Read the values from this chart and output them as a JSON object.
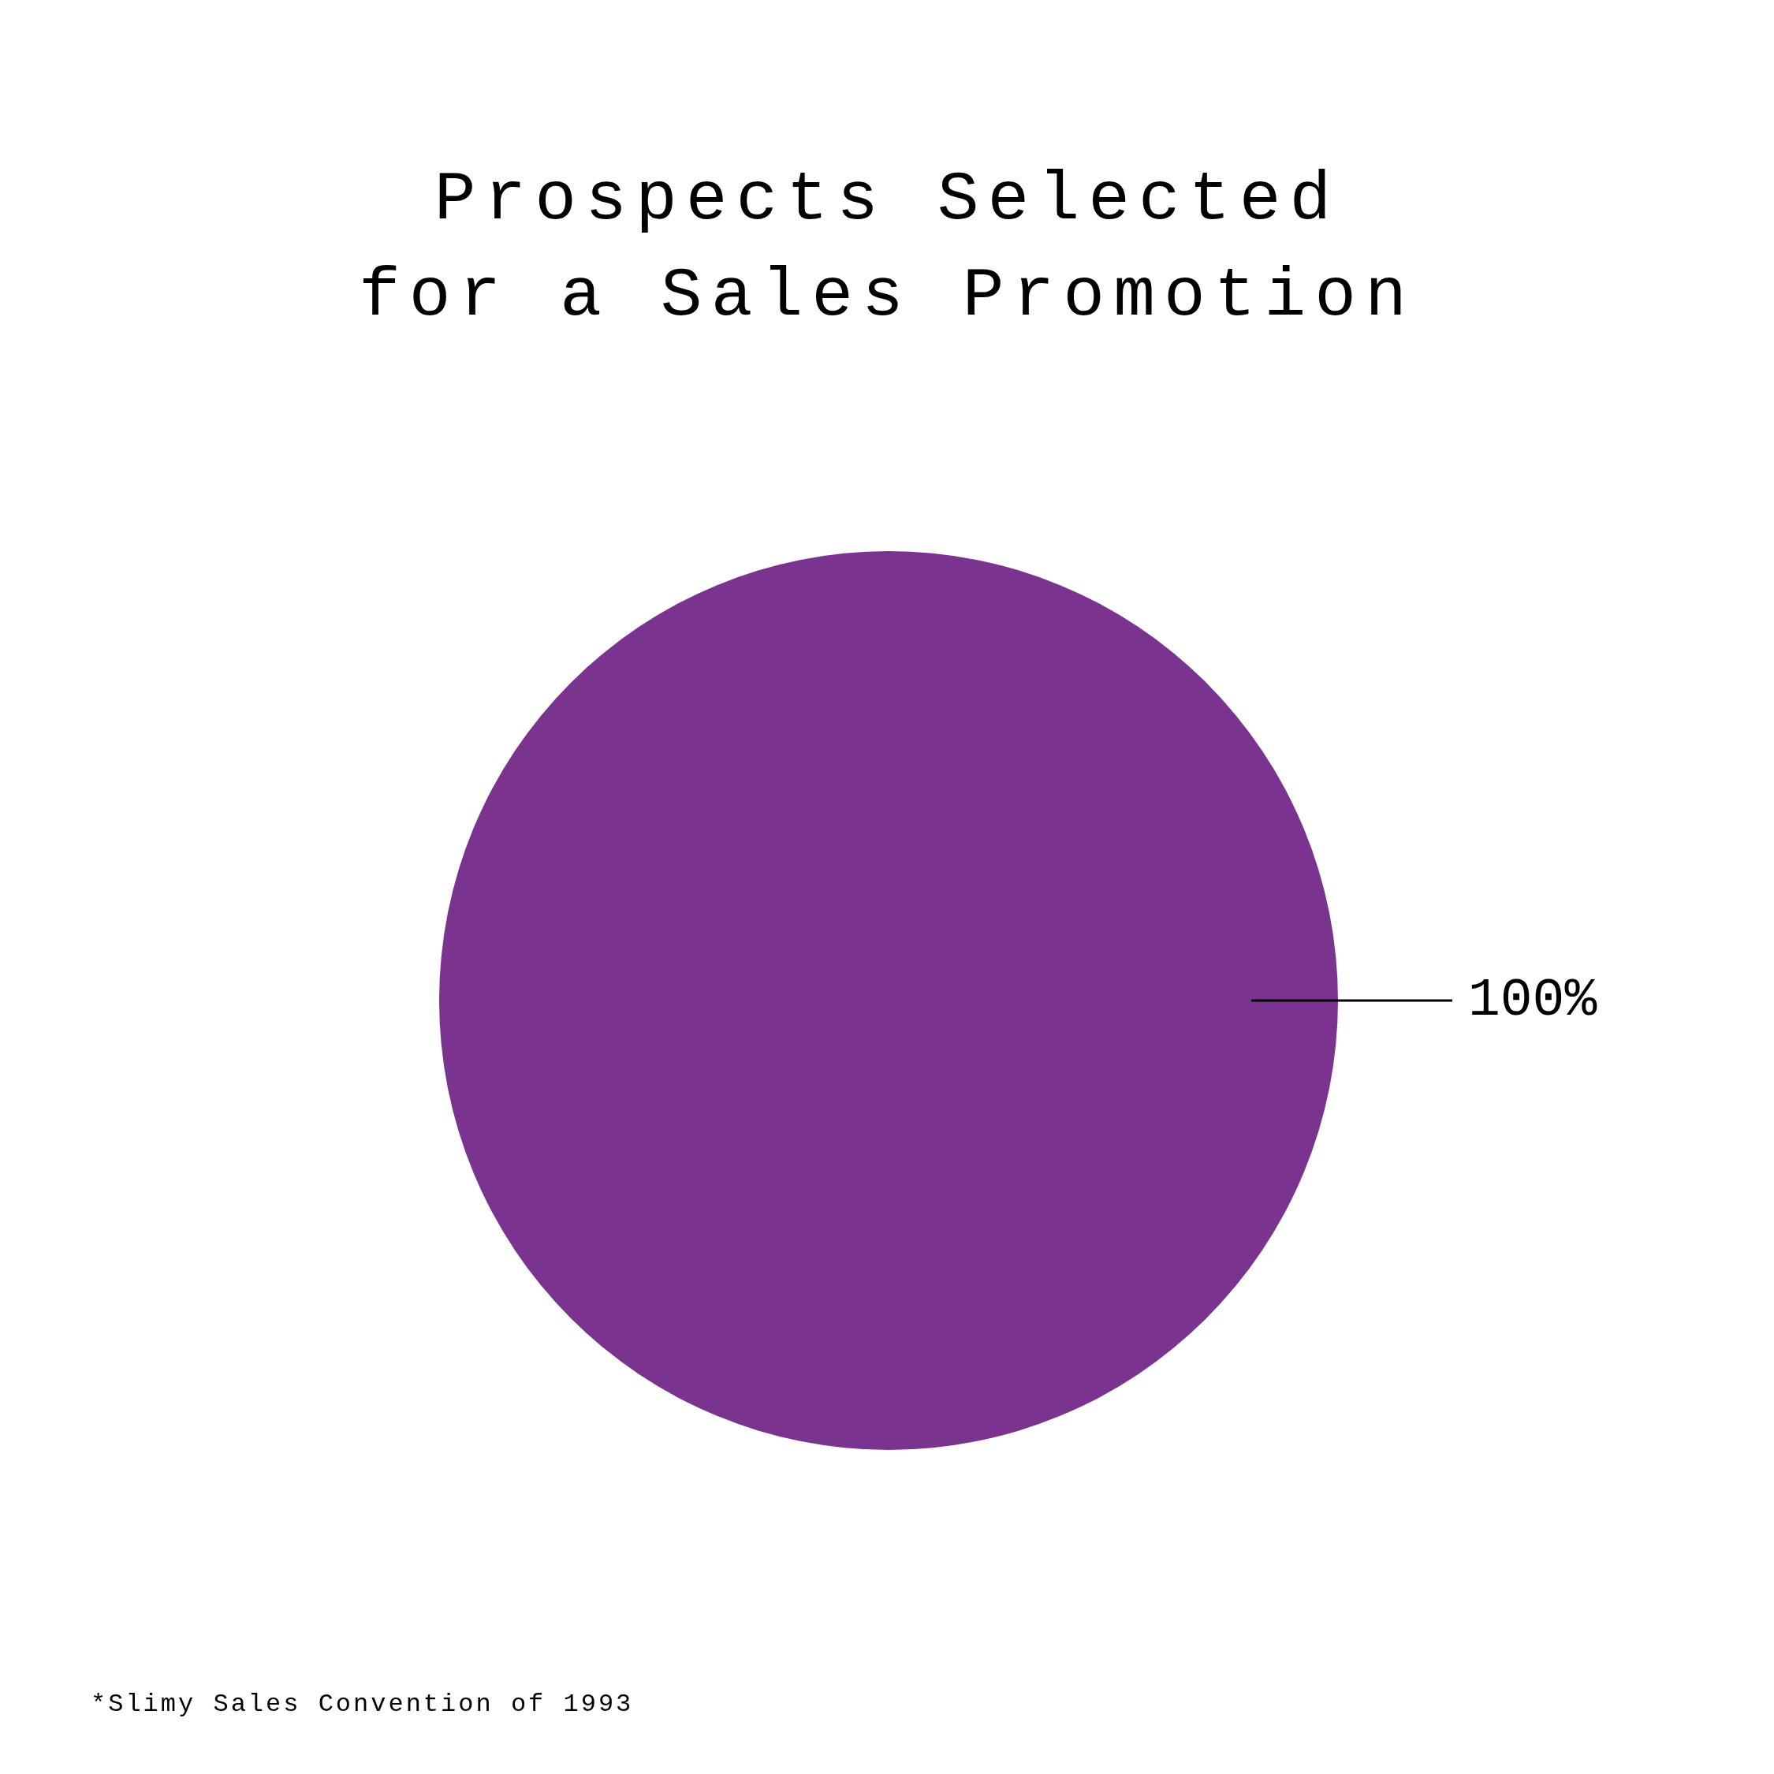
{
  "chart_data": {
    "type": "pie",
    "title": "Prospects Selected for a Sales Promotion",
    "categories": [
      null
    ],
    "values": [
      100
    ],
    "colors": [
      "#7a3490"
    ],
    "value_labels": [
      "100%"
    ],
    "legend": false,
    "annotations": [
      "*Slimy Sales Convention of 1993"
    ]
  }
}
